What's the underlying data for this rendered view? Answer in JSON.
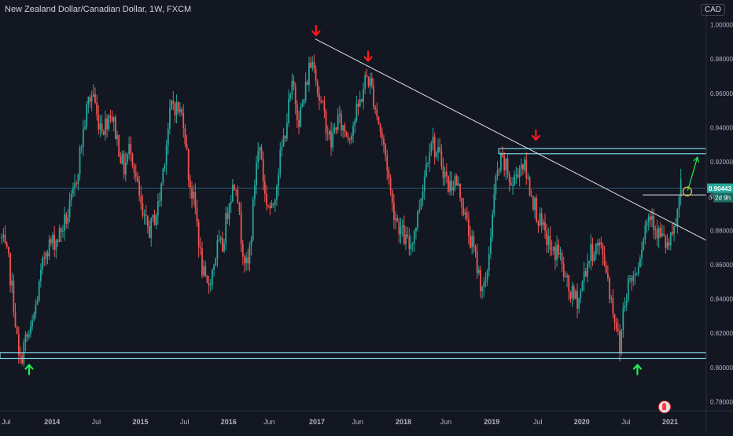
{
  "header": {
    "title": "New Zealand Dollar/Canadian Dollar, 1W, FXCM",
    "currency_button": "CAD"
  },
  "price_tags": {
    "last_price": "0.90443",
    "countdown": "2d 9h",
    "hidden_price_fragment": "0"
  },
  "colors": {
    "background": "#131722",
    "up_candle": "#26a69a",
    "down_candle": "#ef5350",
    "zone_line": "#7fd4e6",
    "trendline": "#e0e3eb",
    "red_arrow": "#ff1a1a",
    "green_arrow": "#22ee55",
    "target_circle": "#c9b837",
    "price_line": "#2a5a6a"
  },
  "chart_data": {
    "type": "candlestick",
    "title": "New Zealand Dollar/Canadian Dollar, 1W, FXCM",
    "xlabel": "",
    "ylabel": "",
    "y_ticks": [
      "1.00000",
      "0.98000",
      "0.96000",
      "0.94000",
      "0.92000",
      "0.90000",
      "0.88000",
      "0.86000",
      "0.84000",
      "0.82000",
      "0.80000",
      "0.78000"
    ],
    "ylim": [
      0.7745,
      1.0078
    ],
    "x_ticks": [
      "Jul",
      "2014",
      "Jul",
      "2015",
      "Jul",
      "2016",
      "Jun",
      "2017",
      "Jun",
      "2018",
      "Jun",
      "2019",
      "Jul",
      "2020",
      "Jul",
      "2021"
    ],
    "xlim": [
      2013.2,
      2021.2
    ],
    "grid": false,
    "price_path": [
      [
        2013.22,
        0.875
      ],
      [
        2013.3,
        0.86
      ],
      [
        2013.36,
        0.835
      ],
      [
        2013.42,
        0.8
      ],
      [
        2013.48,
        0.815
      ],
      [
        2013.55,
        0.82
      ],
      [
        2013.62,
        0.84
      ],
      [
        2013.72,
        0.87
      ],
      [
        2013.85,
        0.875
      ],
      [
        2013.98,
        0.89
      ],
      [
        2014.05,
        0.905
      ],
      [
        2014.12,
        0.93
      ],
      [
        2014.2,
        0.955
      ],
      [
        2014.26,
        0.96
      ],
      [
        2014.3,
        0.945
      ],
      [
        2014.38,
        0.94
      ],
      [
        2014.45,
        0.95
      ],
      [
        2014.52,
        0.935
      ],
      [
        2014.6,
        0.915
      ],
      [
        2014.68,
        0.93
      ],
      [
        2014.74,
        0.91
      ],
      [
        2014.82,
        0.885
      ],
      [
        2014.9,
        0.88
      ],
      [
        2015.0,
        0.895
      ],
      [
        2015.08,
        0.93
      ],
      [
        2015.15,
        0.955
      ],
      [
        2015.22,
        0.95
      ],
      [
        2015.28,
        0.945
      ],
      [
        2015.34,
        0.91
      ],
      [
        2015.42,
        0.89
      ],
      [
        2015.48,
        0.86
      ],
      [
        2015.54,
        0.845
      ],
      [
        2015.6,
        0.855
      ],
      [
        2015.66,
        0.87
      ],
      [
        2015.72,
        0.87
      ],
      [
        2015.8,
        0.9
      ],
      [
        2015.88,
        0.91
      ],
      [
        2015.92,
        0.88
      ],
      [
        2016.0,
        0.855
      ],
      [
        2016.05,
        0.88
      ],
      [
        2016.1,
        0.92
      ],
      [
        2016.15,
        0.93
      ],
      [
        2016.2,
        0.9
      ],
      [
        2016.28,
        0.89
      ],
      [
        2016.35,
        0.915
      ],
      [
        2016.42,
        0.935
      ],
      [
        2016.48,
        0.955
      ],
      [
        2016.52,
        0.965
      ],
      [
        2016.58,
        0.945
      ],
      [
        2016.64,
        0.955
      ],
      [
        2016.7,
        0.975
      ],
      [
        2016.76,
        0.98
      ],
      [
        2016.8,
        0.96
      ],
      [
        2016.88,
        0.945
      ],
      [
        2016.95,
        0.93
      ],
      [
        2017.02,
        0.945
      ],
      [
        2017.08,
        0.94
      ],
      [
        2017.15,
        0.935
      ],
      [
        2017.22,
        0.945
      ],
      [
        2017.28,
        0.955
      ],
      [
        2017.35,
        0.97
      ],
      [
        2017.4,
        0.965
      ],
      [
        2017.46,
        0.95
      ],
      [
        2017.52,
        0.935
      ],
      [
        2017.58,
        0.92
      ],
      [
        2017.64,
        0.895
      ],
      [
        2017.7,
        0.885
      ],
      [
        2017.78,
        0.875
      ],
      [
        2017.84,
        0.87
      ],
      [
        2017.92,
        0.885
      ],
      [
        2018.0,
        0.91
      ],
      [
        2018.08,
        0.935
      ],
      [
        2018.14,
        0.925
      ],
      [
        2018.2,
        0.92
      ],
      [
        2018.28,
        0.905
      ],
      [
        2018.35,
        0.91
      ],
      [
        2018.42,
        0.9
      ],
      [
        2018.5,
        0.88
      ],
      [
        2018.58,
        0.865
      ],
      [
        2018.64,
        0.85
      ],
      [
        2018.7,
        0.845
      ],
      [
        2018.76,
        0.88
      ],
      [
        2018.82,
        0.91
      ],
      [
        2018.88,
        0.92
      ],
      [
        2018.94,
        0.915
      ],
      [
        2019.0,
        0.905
      ],
      [
        2019.06,
        0.915
      ],
      [
        2019.12,
        0.92
      ],
      [
        2019.2,
        0.905
      ],
      [
        2019.28,
        0.89
      ],
      [
        2019.34,
        0.88
      ],
      [
        2019.4,
        0.875
      ],
      [
        2019.46,
        0.865
      ],
      [
        2019.52,
        0.87
      ],
      [
        2019.58,
        0.855
      ],
      [
        2019.64,
        0.845
      ],
      [
        2019.7,
        0.84
      ],
      [
        2019.76,
        0.84
      ],
      [
        2019.82,
        0.855
      ],
      [
        2019.88,
        0.865
      ],
      [
        2019.94,
        0.87
      ],
      [
        2020.0,
        0.87
      ],
      [
        2020.06,
        0.86
      ],
      [
        2020.12,
        0.84
      ],
      [
        2020.18,
        0.825
      ],
      [
        2020.22,
        0.81
      ],
      [
        2020.26,
        0.835
      ],
      [
        2020.32,
        0.85
      ],
      [
        2020.4,
        0.855
      ],
      [
        2020.46,
        0.87
      ],
      [
        2020.52,
        0.885
      ],
      [
        2020.58,
        0.89
      ],
      [
        2020.64,
        0.88
      ],
      [
        2020.7,
        0.875
      ],
      [
        2020.76,
        0.87
      ],
      [
        2020.82,
        0.875
      ],
      [
        2020.86,
        0.885
      ],
      [
        2020.91,
        0.904
      ]
    ]
  },
  "annotations": {
    "descending_trendline": {
      "from": [
        2016.77,
        0.9915
      ],
      "to": [
        2021.2,
        0.874
      ]
    },
    "resistance_zone": {
      "x_from": 2018.85,
      "x_to": 2021.2,
      "y_low": 0.9245,
      "y_high": 0.9275
    },
    "support_zone": {
      "x_from": 2013.2,
      "x_to": 2021.2,
      "y_low": 0.805,
      "y_high": 0.8085
    },
    "broken_level": {
      "x_from": 2020.48,
      "x_to": 2021.2,
      "y": 0.9005
    },
    "red_arrows_down": [
      [
        2016.78,
        0.9955
      ],
      [
        2017.37,
        0.9805
      ],
      [
        2019.27,
        0.9345
      ]
    ],
    "green_arrows_up": [
      [
        2013.53,
        0.7995
      ],
      [
        2020.42,
        0.7995
      ]
    ],
    "projection_arrow": {
      "from": [
        2020.99,
        0.903
      ],
      "to": [
        2021.1,
        0.9225
      ]
    },
    "target_circle": [
      2020.985,
      0.9025
    ],
    "current_price": 0.90443
  }
}
